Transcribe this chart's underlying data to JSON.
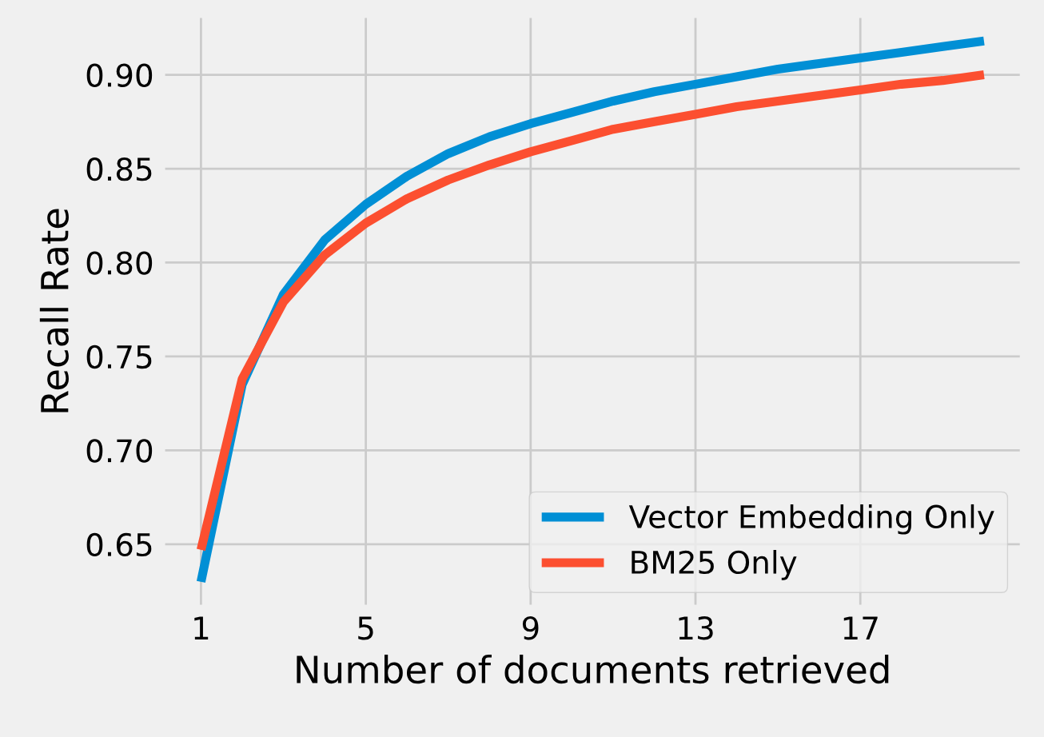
{
  "chart_data": {
    "type": "line",
    "xlabel": "Number of documents retrieved",
    "ylabel": "Recall Rate",
    "x": [
      1,
      2,
      3,
      4,
      5,
      6,
      7,
      8,
      9,
      10,
      11,
      12,
      13,
      14,
      15,
      16,
      17,
      18,
      19,
      20
    ],
    "series": [
      {
        "name": "Vector Embedding Only",
        "color": "#008fd5",
        "values": [
          0.63,
          0.735,
          0.783,
          0.812,
          0.831,
          0.846,
          0.858,
          0.867,
          0.874,
          0.88,
          0.886,
          0.891,
          0.895,
          0.899,
          0.903,
          0.906,
          0.909,
          0.912,
          0.915,
          0.918
        ]
      },
      {
        "name": "BM25 Only",
        "color": "#fc4f30",
        "values": [
          0.647,
          0.738,
          0.779,
          0.804,
          0.821,
          0.834,
          0.844,
          0.852,
          0.859,
          0.865,
          0.871,
          0.875,
          0.879,
          0.883,
          0.886,
          0.889,
          0.892,
          0.895,
          0.897,
          0.9
        ]
      }
    ],
    "xlim": [
      0.05,
      20.95
    ],
    "ylim": [
      0.616,
      0.932
    ],
    "xticks": [
      1,
      5,
      9,
      13,
      17
    ],
    "yticks": [
      0.65,
      {
        "value": 0.7,
        "label": "0.70"
      },
      0.75,
      {
        "value": 0.8,
        "label": "0.80"
      },
      0.85,
      {
        "value": 0.9,
        "label": "0.90"
      }
    ],
    "grid": true,
    "legend": "bottom right",
    "marker": "none",
    "line_style": "solid"
  }
}
